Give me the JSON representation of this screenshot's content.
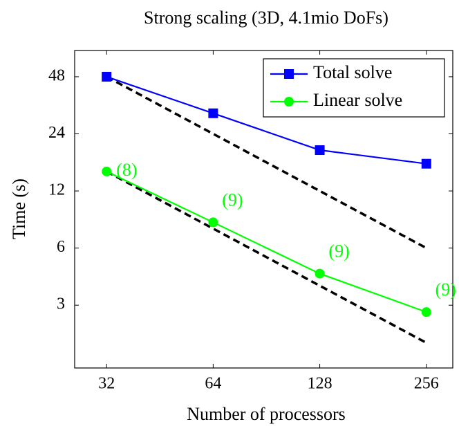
{
  "chart_data": {
    "type": "line",
    "title": "Strong scaling (3D, 4.1mio DoFs)",
    "x_label": "Number of processors",
    "y_label": "Time (s)",
    "x": [
      32,
      64,
      128,
      256
    ],
    "xlim": [
      26,
      304
    ],
    "xticks": [
      32,
      64,
      128,
      256
    ],
    "x_log": true,
    "ylim": [
      1.4,
      66
    ],
    "yticks": [
      3,
      6,
      12,
      24,
      48
    ],
    "y_log": true,
    "legend": "top-right",
    "series": [
      {
        "name": "Total solve",
        "color": "#0000ff",
        "marker": "square",
        "values": [
          48,
          30.8,
          19.7,
          16.7
        ]
      },
      {
        "name": "Linear solve",
        "color": "#00ff00",
        "marker": "circle",
        "values": [
          15.2,
          8.2,
          4.4,
          2.76
        ],
        "point_labels": [
          "(8)",
          "(9)",
          "(9)",
          "(9)"
        ]
      }
    ],
    "reference_lines": [
      {
        "color": "#000000",
        "dashed": true,
        "values": [
          48,
          24,
          12,
          6
        ]
      },
      {
        "color": "#000000",
        "dashed": true,
        "values": [
          15.2,
          7.6,
          3.8,
          1.9
        ]
      }
    ]
  }
}
